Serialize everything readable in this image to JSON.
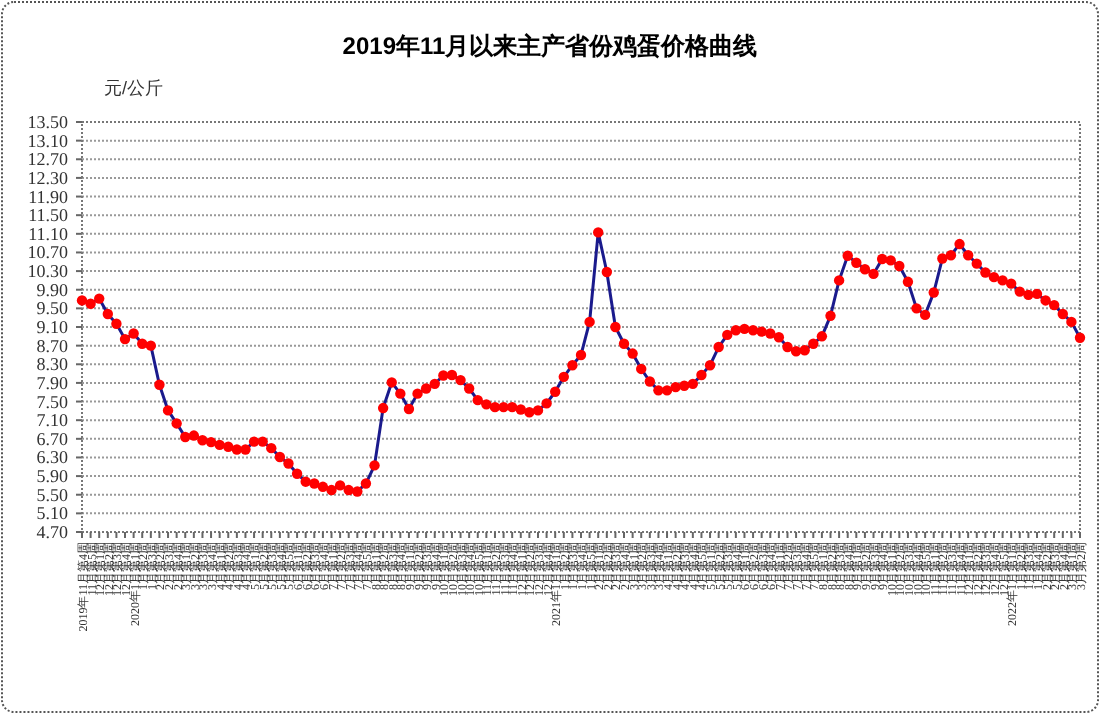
{
  "chart_data": {
    "type": "line",
    "title": "2019年11月以来主产省份鸡蛋价格曲线",
    "ylabel": "元/公斤",
    "categories": [
      "2019年11月第4周",
      "11月第5周",
      "12月第1周",
      "12月第2周",
      "12月第3周",
      "12月第4周",
      "2020年1月第1周",
      "1月第2周",
      "1月第3周",
      "2月第2周",
      "2月第3周",
      "2月第4周",
      "3月第1周",
      "3月第2周",
      "3月第3周",
      "3月第4周",
      "4月第1周",
      "4月第2周",
      "4月第3周",
      "4月第4周",
      "5月第1周",
      "5月第2周",
      "5月第3周",
      "5月第4周",
      "5月第5周",
      "6月第1周",
      "6月第2周",
      "6月第3周",
      "6月第4周",
      "7月第1周",
      "7月第2周",
      "7月第3周",
      "7月第4周",
      "7月第5周",
      "8月第1周",
      "8月第2周",
      "8月第3周",
      "8月第4周",
      "9月第1周",
      "9月第2周",
      "9月第3周",
      "9月第4周",
      "10月第1周",
      "10月第2周",
      "10月第3周",
      "10月第4周",
      "10月第5周",
      "11月第1周",
      "11月第2周",
      "11月第3周",
      "11月第4周",
      "12月第1周",
      "12月第2周",
      "12月第3周",
      "12月第4周",
      "2021年1月第1周",
      "1月第2周",
      "1月第3周",
      "1月第4周",
      "1月第5周",
      "2月第1周",
      "2月第2周",
      "2月第3周",
      "2月第4周",
      "3月第1周",
      "3月第2周",
      "3月第3周",
      "3月第4周",
      "4月第1周",
      "4月第2周",
      "4月第3周",
      "4月第4周",
      "4月第5周",
      "5月第1周",
      "5月第2周",
      "5月第3周",
      "5月第4周",
      "6月第1周",
      "6月第2周",
      "6月第3周",
      "6月第4周",
      "7月第1周",
      "7月第2周",
      "7月第3周",
      "7月第4周",
      "7月第5周",
      "8月第1周",
      "8月第2周",
      "8月第3周",
      "8月第4周",
      "9月第1周",
      "9月第2周",
      "9月第3周",
      "9月第4周",
      "10月第1周",
      "10月第2周",
      "10月第3周",
      "10月第4周",
      "10月第5周",
      "11月第1周",
      "11月第2周",
      "11月第3周",
      "11月第4周",
      "12月第1周",
      "12月第2周",
      "12月第3周",
      "12月第4周",
      "12月第5周",
      "2022年1月第1周",
      "1月第2周",
      "1月第3周",
      "1月第4周",
      "2月第2周",
      "2月第3周",
      "2月第4周",
      "3月第1周",
      "3月第2周"
    ],
    "series": [
      {
        "color": "#1a1a8c",
        "values": [
          9.67,
          9.6,
          9.71,
          9.38,
          9.17,
          8.84,
          8.96,
          8.74,
          8.7,
          7.86,
          7.31,
          7.03,
          6.74,
          6.77,
          6.67,
          6.63,
          6.57,
          6.53,
          6.47,
          6.47,
          6.64,
          6.64,
          6.5,
          6.31,
          6.17,
          5.95,
          5.78,
          5.74,
          5.67,
          5.6,
          5.7,
          5.6,
          5.57,
          5.74,
          6.13,
          7.36,
          7.91,
          7.67,
          7.34,
          7.67,
          7.78,
          7.88,
          8.06,
          8.07,
          7.96,
          7.78,
          7.53,
          7.44,
          7.38,
          7.38,
          7.38,
          7.33,
          7.27,
          7.31,
          7.46,
          7.71,
          8.03,
          8.28,
          8.5,
          9.21,
          11.13,
          10.28,
          9.1,
          8.74,
          8.53,
          8.2,
          7.93,
          7.74,
          7.74,
          7.81,
          7.84,
          7.88,
          8.07,
          8.28,
          8.67,
          8.93,
          9.03,
          9.06,
          9.03,
          9.0,
          8.96,
          8.88,
          8.67,
          8.58,
          8.6,
          8.74,
          8.9,
          9.34,
          10.1,
          10.63,
          10.48,
          10.34,
          10.24,
          10.56,
          10.53,
          10.41,
          10.07,
          9.5,
          9.36,
          9.84,
          10.57,
          10.64,
          10.88,
          10.64,
          10.46,
          10.27,
          10.17,
          10.1,
          10.03,
          9.86,
          9.79,
          9.81,
          9.67,
          9.57,
          9.38,
          9.21,
          8.87
        ]
      }
    ],
    "ylim": [
      4.7,
      13.5
    ],
    "yticks": [
      {
        "value": 4.7,
        "label": "4.70"
      },
      {
        "value": 5.1,
        "label": "5.10"
      },
      {
        "value": 5.5,
        "label": "5.50"
      },
      {
        "value": 5.9,
        "label": "5.90"
      },
      {
        "value": 6.3,
        "label": "6.30"
      },
      {
        "value": 6.7,
        "label": "6.70"
      },
      {
        "value": 7.1,
        "label": "7.10"
      },
      {
        "value": 7.5,
        "label": "7.50"
      },
      {
        "value": 7.9,
        "label": "7.90"
      },
      {
        "value": 8.3,
        "label": "8.30"
      },
      {
        "value": 8.7,
        "label": "8.70"
      },
      {
        "value": 9.1,
        "label": "9.10"
      },
      {
        "value": 9.5,
        "label": "9.50"
      },
      {
        "value": 9.9,
        "label": "9.90"
      },
      {
        "value": 10.3,
        "label": "10.30"
      },
      {
        "value": 10.7,
        "label": "10.70"
      },
      {
        "value": 11.1,
        "label": "11.10"
      },
      {
        "value": 11.5,
        "label": "11.50"
      },
      {
        "value": 11.9,
        "label": "11.90"
      },
      {
        "value": 12.3,
        "label": "12.30"
      },
      {
        "value": 12.7,
        "label": "12.70"
      },
      {
        "value": 13.1,
        "label": "13.10"
      },
      {
        "value": 13.5,
        "label": "13.50"
      }
    ],
    "grid": "y",
    "marker": "circle",
    "line_style": "solid"
  }
}
